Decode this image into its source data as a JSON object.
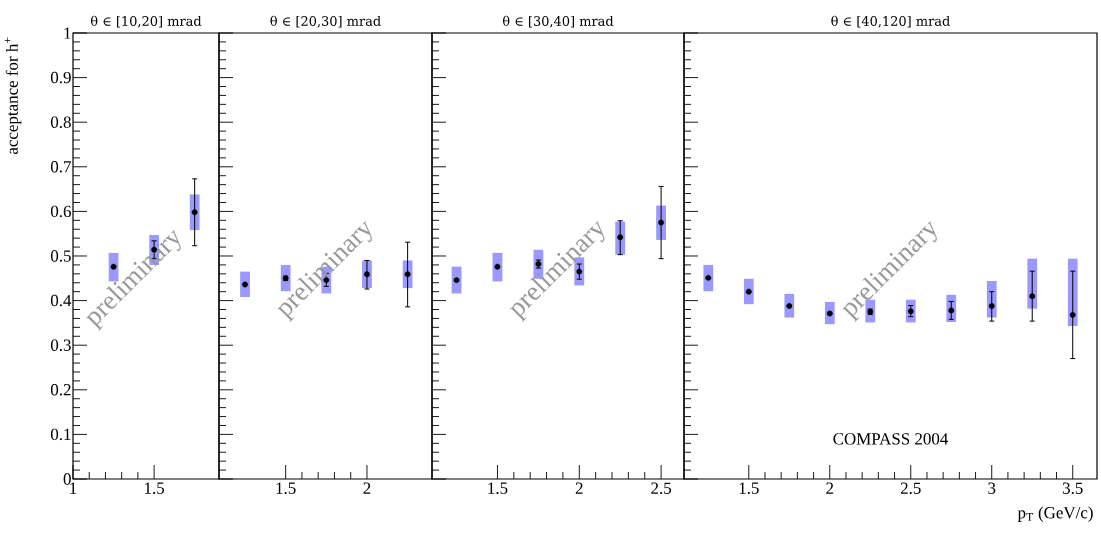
{
  "chart_data": [
    {
      "type": "scatter",
      "title": "θ ∈ [10,20] mrad",
      "ylabel": "acceptance for h$^{+}$",
      "xlim": [
        1,
        1.9
      ],
      "xticks": [
        1,
        1.5
      ],
      "ylim": [
        0,
        1
      ],
      "yticks": [
        0,
        0.1,
        0.2,
        0.3,
        0.4,
        0.5,
        0.6,
        0.7,
        0.8,
        0.9,
        1
      ],
      "annotations": [
        "preliminary"
      ],
      "series": [
        {
          "type": "bar",
          "color": "#9999ff",
          "x": [
            1.25,
            1.5,
            1.75
          ],
          "base": [
            0.443,
            0.48,
            0.558
          ],
          "values": [
            0.064,
            0.067,
            0.08
          ]
        },
        {
          "color": "#000000",
          "x": [
            1.25,
            1.5,
            1.75
          ],
          "values": [
            0.476,
            0.514,
            0.598
          ],
          "errors": [
            null,
            [
              0.494,
              0.534
            ],
            [
              0.523,
              0.673
            ]
          ]
        }
      ]
    },
    {
      "type": "scatter",
      "title": "θ ∈ [20,30] mrad",
      "xlim": [
        1.09,
        2.4
      ],
      "xticks": [
        1.5,
        2
      ],
      "ylim": [
        0,
        1
      ],
      "yticks": [
        0,
        0.1,
        0.2,
        0.3,
        0.4,
        0.5,
        0.6,
        0.7,
        0.8,
        0.9,
        1
      ],
      "tick_labels": "x",
      "annotations": [
        "preliminary"
      ],
      "series": [
        {
          "type": "bar",
          "color": "#9999ff",
          "x": [
            1.25,
            1.5,
            1.75,
            2,
            2.25
          ],
          "base": [
            0.408,
            0.421,
            0.416,
            0.428,
            0.428
          ],
          "values": [
            0.057,
            0.059,
            0.06,
            0.062,
            0.062
          ]
        },
        {
          "color": "#000000",
          "x": [
            1.25,
            1.5,
            1.75,
            2,
            2.25
          ],
          "values": [
            0.436,
            0.45,
            0.446,
            0.459,
            0.459
          ],
          "errors": [
            null,
            [
              0.445,
              0.455
            ],
            [
              0.432,
              0.461
            ],
            [
              0.426,
              0.49
            ],
            [
              0.386,
              0.531
            ]
          ]
        }
      ]
    },
    {
      "type": "scatter",
      "title": "θ ∈ [30,40] mrad",
      "xlim": [
        1.1,
        2.64
      ],
      "xticks": [
        1.5,
        2,
        2.5
      ],
      "ylim": [
        0,
        1
      ],
      "yticks": [
        0,
        0.1,
        0.2,
        0.3,
        0.4,
        0.5,
        0.6,
        0.7,
        0.8,
        0.9,
        1
      ],
      "tick_labels": "x",
      "annotations": [
        "preliminary"
      ],
      "series": [
        {
          "type": "bar",
          "color": "#9999ff",
          "x": [
            1.25,
            1.5,
            1.75,
            2,
            2.25,
            2.5
          ],
          "base": [
            0.416,
            0.443,
            0.449,
            0.434,
            0.503,
            0.536
          ],
          "values": [
            0.06,
            0.064,
            0.065,
            0.063,
            0.074,
            0.077
          ]
        },
        {
          "color": "#000000",
          "x": [
            1.25,
            1.5,
            1.75,
            2,
            2.25,
            2.5
          ],
          "values": [
            0.446,
            0.476,
            0.482,
            0.465,
            0.542,
            0.575
          ],
          "errors": [
            null,
            null,
            [
              0.473,
              0.491
            ],
            [
              0.448,
              0.482
            ],
            [
              0.503,
              0.579
            ],
            [
              0.494,
              0.656
            ]
          ]
        }
      ]
    },
    {
      "type": "scatter",
      "title": "θ ∈ [40,120] mrad",
      "xlabel": "p$_{T}$ (GeV/c)",
      "xlim": [
        1.1,
        3.65
      ],
      "xticks": [
        1.5,
        2,
        2.5,
        3,
        3.5
      ],
      "ylim": [
        0,
        1
      ],
      "yticks": [
        0,
        0.1,
        0.2,
        0.3,
        0.4,
        0.5,
        0.6,
        0.7,
        0.8,
        0.9,
        1
      ],
      "tick_labels": "x",
      "annotations": [
        "preliminary",
        "COMPASS 2004"
      ],
      "series": [
        {
          "type": "bar",
          "color": "#9999ff",
          "x": [
            1.25,
            1.5,
            1.75,
            2,
            2.25,
            2.5,
            2.75,
            3,
            3.25,
            3.5
          ],
          "base": [
            0.421,
            0.392,
            0.362,
            0.347,
            0.351,
            0.351,
            0.352,
            0.362,
            0.382,
            0.343
          ],
          "values": [
            0.059,
            0.057,
            0.053,
            0.05,
            0.051,
            0.051,
            0.061,
            0.082,
            0.112,
            0.151
          ]
        },
        {
          "color": "#000000",
          "x": [
            1.25,
            1.5,
            1.75,
            2,
            2.25,
            2.5,
            2.75,
            3,
            3.25,
            3.5
          ],
          "values": [
            0.451,
            0.42,
            0.388,
            0.371,
            0.375,
            0.376,
            0.378,
            0.388,
            0.41,
            0.368
          ],
          "errors": [
            null,
            null,
            null,
            null,
            [
              0.369,
              0.381
            ],
            [
              0.364,
              0.389
            ],
            [
              0.358,
              0.398
            ],
            [
              0.354,
              0.42
            ],
            [
              0.354,
              0.466
            ],
            [
              0.27,
              0.466
            ]
          ]
        }
      ]
    }
  ]
}
